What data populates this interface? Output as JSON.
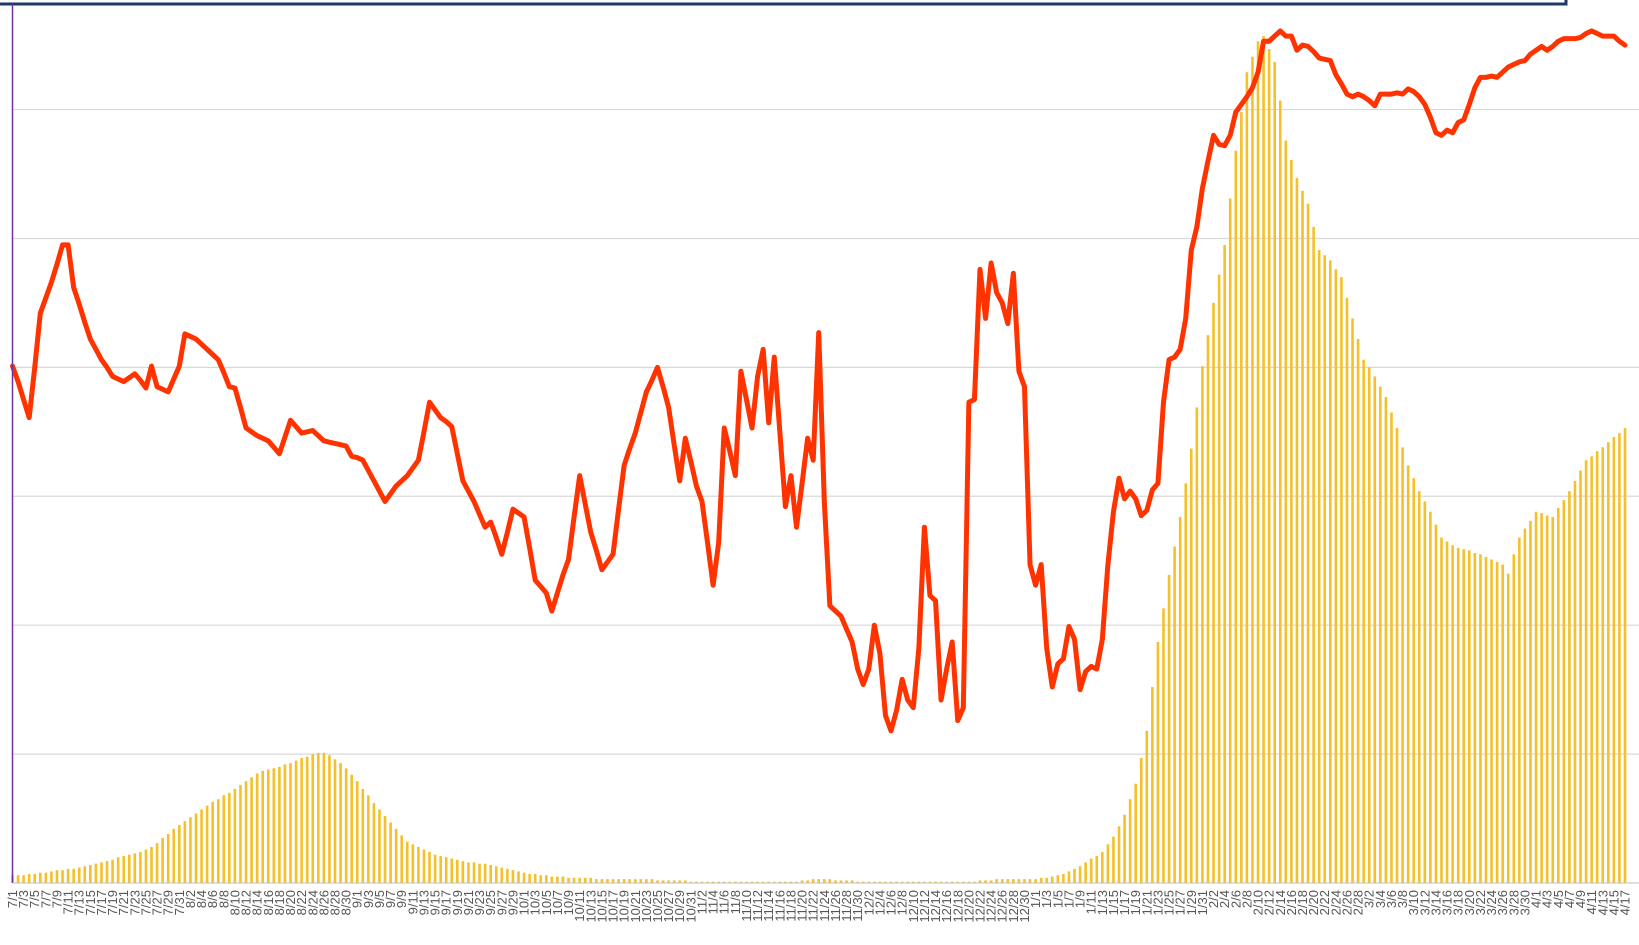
{
  "chart_data": {
    "type": "bar",
    "categories": [
      "7/1",
      null,
      "7/3",
      null,
      "7/5",
      null,
      "7/7",
      null,
      "7/9",
      null,
      "7/11",
      null,
      "7/13",
      null,
      "7/15",
      null,
      "7/17",
      null,
      "7/19",
      null,
      "7/21",
      null,
      "7/23",
      null,
      "7/25",
      null,
      "7/27",
      null,
      "7/29",
      null,
      "7/31",
      null,
      "8/2",
      null,
      "8/4",
      null,
      "8/6",
      null,
      "8/8",
      null,
      "8/10",
      null,
      "8/12",
      null,
      "8/14",
      null,
      "8/16",
      null,
      "8/18",
      null,
      "8/20",
      null,
      "8/22",
      null,
      "8/24",
      null,
      "8/26",
      null,
      "8/28",
      null,
      "8/30",
      null,
      "9/1",
      null,
      "9/3",
      null,
      "9/5",
      null,
      "9/7",
      null,
      "9/9",
      null,
      "9/11",
      null,
      "9/13",
      null,
      "9/15",
      null,
      "9/17",
      null,
      "9/19",
      null,
      "9/21",
      null,
      "9/23",
      null,
      "9/25",
      null,
      "9/27",
      null,
      "9/29",
      null,
      "10/1",
      null,
      "10/3",
      null,
      "10/5",
      null,
      "10/7",
      null,
      "10/9",
      null,
      "10/11",
      null,
      "10/13",
      null,
      "10/15",
      null,
      "10/17",
      null,
      "10/19",
      null,
      "10/21",
      null,
      "10/23",
      null,
      "10/25",
      null,
      "10/27",
      null,
      "10/29",
      null,
      "10/31",
      null,
      "11/2",
      null,
      "11/4",
      null,
      "11/6",
      null,
      "11/8",
      null,
      "11/10",
      null,
      "11/12",
      null,
      "11/14",
      null,
      "11/16",
      null,
      "11/18",
      null,
      "11/20",
      null,
      "11/22",
      null,
      "11/24",
      null,
      "11/26",
      null,
      "11/28",
      null,
      "11/30",
      null,
      "12/2",
      null,
      "12/4",
      null,
      "12/6",
      null,
      "12/8",
      null,
      "12/10",
      null,
      "12/12",
      null,
      "12/14",
      null,
      "12/16",
      null,
      "12/18",
      null,
      "12/20",
      null,
      "12/22",
      null,
      "12/24",
      null,
      "12/26",
      null,
      "12/28",
      null,
      "12/30",
      null,
      "1/1",
      null,
      "1/3",
      null,
      "1/5",
      null,
      "1/7",
      null,
      "1/9",
      null,
      "1/11",
      null,
      "1/13",
      null,
      "1/15",
      null,
      "1/17",
      null,
      "1/19",
      null,
      "1/21",
      null,
      "1/23",
      null,
      "1/25",
      null,
      "1/27",
      null,
      "1/29",
      null,
      "1/31",
      null,
      "2/2",
      null,
      "2/4",
      null,
      "2/6",
      null,
      "2/8",
      null,
      "2/10",
      null,
      "2/12",
      null,
      "2/14",
      null,
      "2/16",
      null,
      "2/18",
      null,
      "2/20",
      null,
      "2/22",
      null,
      "2/24",
      null,
      "2/26",
      null,
      "2/28",
      null,
      "3/2",
      null,
      "3/4",
      null,
      "3/6",
      null,
      "3/8",
      null,
      "3/10",
      null,
      "3/12",
      null,
      "3/14",
      null,
      "3/16",
      null,
      "3/18",
      null,
      "3/20",
      null,
      "3/22",
      null,
      "3/24",
      null,
      "3/26",
      null,
      "3/28",
      null,
      "3/30",
      null,
      "4/1",
      null,
      "4/3",
      null,
      "4/5",
      null,
      "4/7",
      null,
      "4/9",
      null,
      "4/11",
      null,
      "4/13",
      null,
      "4/15",
      null,
      "4/17"
    ],
    "series": [
      {
        "type": "bar",
        "color": "#f5c02a",
        "values": [
          0.06,
          0.06,
          0.06,
          0.07,
          0.07,
          0.08,
          0.08,
          0.09,
          0.1,
          0.1,
          0.11,
          0.11,
          0.12,
          0.13,
          0.14,
          0.15,
          0.16,
          0.17,
          0.18,
          0.2,
          0.21,
          0.22,
          0.23,
          0.24,
          0.26,
          0.28,
          0.31,
          0.35,
          0.38,
          0.42,
          0.45,
          0.48,
          0.51,
          0.54,
          0.57,
          0.6,
          0.63,
          0.65,
          0.68,
          0.7,
          0.73,
          0.76,
          0.79,
          0.82,
          0.85,
          0.87,
          0.88,
          0.89,
          0.9,
          0.92,
          0.93,
          0.95,
          0.97,
          0.98,
          1.0,
          1.01,
          1.01,
          0.99,
          0.96,
          0.93,
          0.89,
          0.84,
          0.79,
          0.73,
          0.68,
          0.62,
          0.57,
          0.52,
          0.47,
          0.42,
          0.37,
          0.32,
          0.3,
          0.28,
          0.26,
          0.24,
          0.22,
          0.21,
          0.2,
          0.19,
          0.18,
          0.17,
          0.16,
          0.16,
          0.15,
          0.15,
          0.14,
          0.13,
          0.12,
          0.11,
          0.1,
          0.09,
          0.08,
          0.07,
          0.07,
          0.06,
          0.06,
          0.05,
          0.05,
          0.05,
          0.04,
          0.04,
          0.04,
          0.04,
          0.04,
          0.03,
          0.03,
          0.03,
          0.03,
          0.03,
          0.03,
          0.03,
          0.03,
          0.03,
          0.03,
          0.03,
          0.02,
          0.02,
          0.02,
          0.02,
          0.02,
          0.02,
          0.01,
          0.01,
          0.01,
          0.01,
          0.01,
          0.01,
          0.01,
          0.01,
          0.01,
          0.01,
          0.01,
          0.01,
          0.01,
          0.01,
          0.01,
          0.01,
          0.01,
          0.01,
          0.01,
          0.01,
          0.02,
          0.02,
          0.03,
          0.03,
          0.03,
          0.03,
          0.02,
          0.02,
          0.02,
          0.02,
          0.01,
          0.01,
          0.01,
          0.01,
          0.01,
          0.01,
          0.01,
          0.01,
          0.01,
          0.01,
          0.01,
          0.01,
          0.01,
          0.01,
          0.01,
          0.01,
          0.01,
          0.01,
          0.01,
          0.01,
          0.01,
          0.01,
          0.02,
          0.02,
          0.02,
          0.03,
          0.03,
          0.03,
          0.03,
          0.03,
          0.03,
          0.03,
          0.03,
          0.04,
          0.04,
          0.05,
          0.06,
          0.07,
          0.09,
          0.11,
          0.13,
          0.16,
          0.19,
          0.21,
          0.24,
          0.3,
          0.36,
          0.44,
          0.53,
          0.65,
          0.77,
          0.97,
          1.18,
          1.52,
          1.87,
          2.13,
          2.39,
          2.61,
          2.84,
          3.1,
          3.37,
          3.69,
          4.01,
          4.25,
          4.5,
          4.72,
          4.95,
          5.31,
          5.68,
          5.98,
          6.29,
          6.41,
          6.53,
          6.57,
          6.47,
          6.37,
          6.07,
          5.76,
          5.61,
          5.47,
          5.37,
          5.27,
          5.09,
          4.91,
          4.87,
          4.83,
          4.76,
          4.7,
          4.54,
          4.38,
          4.22,
          4.06,
          4.0,
          3.93,
          3.85,
          3.77,
          3.65,
          3.53,
          3.38,
          3.24,
          3.14,
          3.04,
          2.96,
          2.88,
          2.78,
          2.68,
          2.65,
          2.62,
          2.6,
          2.59,
          2.58,
          2.56,
          2.55,
          2.53,
          2.51,
          2.49,
          2.47,
          2.4,
          2.55,
          2.68,
          2.75,
          2.81,
          2.88,
          2.87,
          2.85,
          2.84,
          2.91,
          2.97,
          3.04,
          3.12,
          3.2,
          3.28,
          3.31,
          3.35,
          3.38,
          3.42,
          3.46,
          3.49,
          3.53
        ]
      },
      {
        "type": "line",
        "color": "#ff3300",
        "values": [
          4.01,
          3.89,
          3.75,
          3.61,
          4.0,
          4.42,
          4.54,
          4.66,
          4.8,
          4.95,
          4.95,
          4.62,
          4.49,
          4.35,
          4.22,
          4.14,
          4.06,
          4.0,
          3.93,
          3.91,
          3.89,
          3.92,
          3.95,
          3.9,
          3.84,
          4.01,
          3.85,
          3.83,
          3.81,
          3.91,
          4.01,
          4.26,
          4.24,
          4.22,
          4.18,
          4.14,
          4.1,
          4.06,
          3.96,
          3.85,
          3.84,
          3.69,
          3.53,
          3.5,
          3.47,
          3.45,
          3.43,
          3.38,
          3.33,
          3.46,
          3.59,
          3.54,
          3.49,
          3.5,
          3.51,
          3.47,
          3.43,
          3.42,
          3.41,
          3.4,
          3.39,
          3.31,
          3.3,
          3.28,
          3.2,
          3.12,
          3.04,
          2.96,
          3.02,
          3.08,
          3.12,
          3.16,
          3.22,
          3.28,
          3.5,
          3.73,
          3.67,
          3.61,
          3.58,
          3.54,
          3.33,
          3.12,
          3.04,
          2.96,
          2.86,
          2.76,
          2.8,
          2.68,
          2.55,
          2.72,
          2.9,
          2.87,
          2.84,
          2.6,
          2.35,
          2.3,
          2.25,
          2.11,
          2.25,
          2.39,
          2.51,
          2.84,
          3.16,
          2.94,
          2.72,
          2.58,
          2.43,
          2.49,
          2.55,
          2.9,
          3.24,
          3.37,
          3.49,
          3.65,
          3.81,
          3.9,
          4.0,
          3.85,
          3.69,
          3.4,
          3.12,
          3.45,
          3.27,
          3.08,
          2.96,
          2.64,
          2.31,
          2.64,
          3.53,
          3.35,
          3.16,
          3.97,
          3.75,
          3.53,
          3.93,
          4.14,
          3.57,
          4.08,
          3.5,
          2.92,
          3.16,
          2.76,
          3.1,
          3.45,
          3.28,
          4.27,
          2.96,
          2.15,
          2.11,
          2.07,
          1.97,
          1.87,
          1.66,
          1.54,
          1.66,
          2.0,
          1.78,
          1.3,
          1.18,
          1.34,
          1.58,
          1.42,
          1.36,
          1.82,
          2.76,
          2.23,
          2.19,
          1.42,
          1.66,
          1.87,
          1.26,
          1.36,
          3.73,
          3.75,
          4.76,
          4.38,
          4.81,
          4.58,
          4.5,
          4.34,
          4.73,
          3.97,
          3.85,
          2.47,
          2.31,
          2.47,
          1.82,
          1.52,
          1.7,
          1.74,
          1.99,
          1.89,
          1.5,
          1.64,
          1.68,
          1.66,
          1.89,
          2.47,
          2.88,
          3.14,
          2.98,
          3.04,
          2.98,
          2.85,
          2.89,
          3.05,
          3.1,
          3.73,
          4.06,
          4.08,
          4.14,
          4.38,
          4.91,
          5.09,
          5.39,
          5.6,
          5.8,
          5.73,
          5.72,
          5.8,
          5.98,
          6.04,
          6.1,
          6.17,
          6.29,
          6.53,
          6.53,
          6.57,
          6.61,
          6.57,
          6.57,
          6.46,
          6.5,
          6.49,
          6.45,
          6.4,
          6.39,
          6.38,
          6.27,
          6.2,
          6.12,
          6.1,
          6.12,
          6.1,
          6.07,
          6.03,
          6.12,
          6.12,
          6.12,
          6.13,
          6.12,
          6.16,
          6.14,
          6.1,
          6.04,
          5.94,
          5.82,
          5.8,
          5.84,
          5.82,
          5.9,
          5.92,
          6.04,
          6.17,
          6.25,
          6.25,
          6.26,
          6.25,
          6.29,
          6.33,
          6.35,
          6.37,
          6.38,
          6.43,
          6.46,
          6.49,
          6.46,
          6.49,
          6.53,
          6.55,
          6.55,
          6.55,
          6.56,
          6.59,
          6.61,
          6.59,
          6.57,
          6.57,
          6.57,
          6.53,
          6.5
        ]
      }
    ],
    "ylim": [
      0,
      6.85
    ],
    "yticks": [
      1,
      2,
      3,
      4,
      5,
      6
    ],
    "grid": true
  }
}
